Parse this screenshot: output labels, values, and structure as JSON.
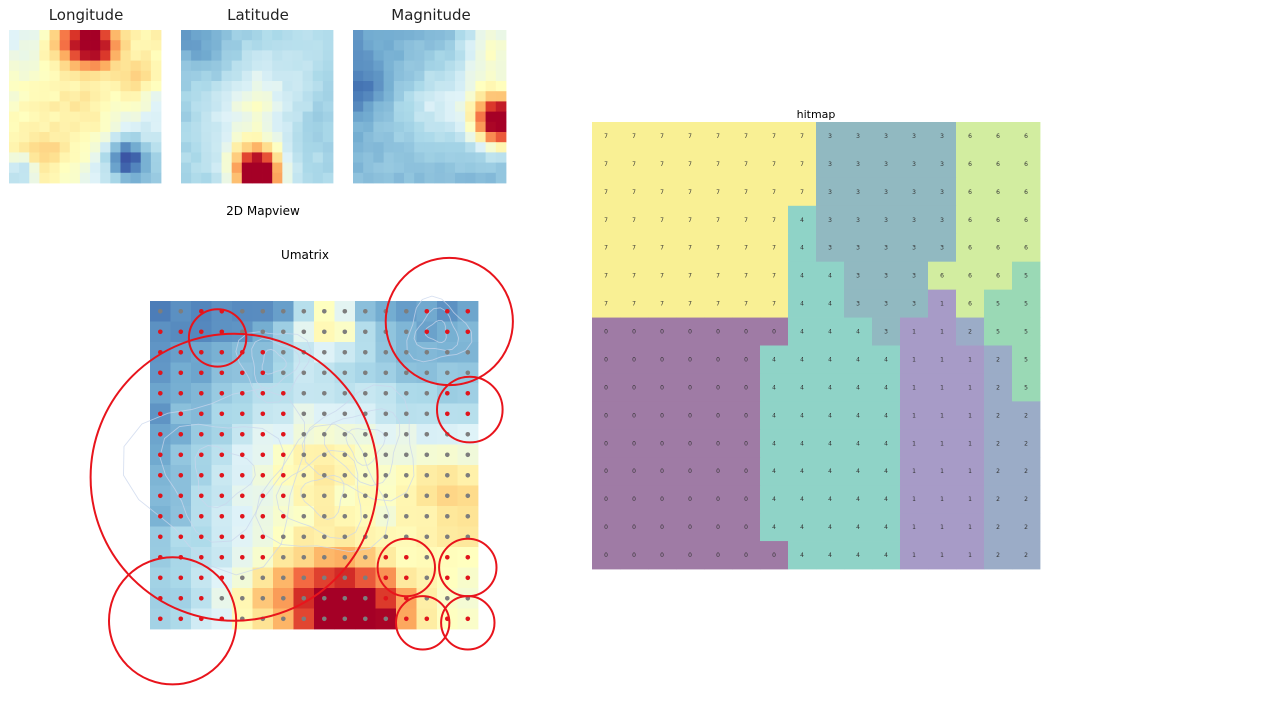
{
  "chart_data": [
    {
      "type": "heatmap",
      "title": "Longitude",
      "cmap": "RdYlBu_r",
      "rows": 15,
      "cols": 15,
      "value_range": [
        0,
        1
      ],
      "spec": {
        "base": [
          0.4,
          0.55,
          0.6,
          0.28,
          0.2
        ],
        "blobs": [
          [
            1,
            8,
            1.5,
            0.55
          ],
          [
            0.5,
            5.5,
            1.5,
            0.3
          ],
          [
            4,
            12,
            1.2,
            0.15
          ],
          [
            12,
            11,
            1.4,
            -0.35
          ],
          [
            13.5,
            0.5,
            1.2,
            -0.3
          ],
          [
            11.5,
            3,
            1.4,
            0.1
          ]
        ],
        "seed": 7,
        "noise": 0.05
      }
    },
    {
      "type": "heatmap",
      "title": "Latitude",
      "cmap": "RdYlBu_r",
      "rows": 15,
      "cols": 15,
      "value_range": [
        0,
        1
      ],
      "spec": {
        "base": [
          0.28,
          0.32,
          0.3,
          0.3,
          0.3
        ],
        "blobs": [
          [
            13.8,
            7.2,
            1.4,
            0.75
          ],
          [
            12.5,
            6.5,
            1.8,
            0.3
          ],
          [
            0,
            0,
            1.4,
            -0.1
          ],
          [
            2,
            2.5,
            2,
            -0.08
          ],
          [
            8,
            12,
            2,
            -0.05
          ]
        ],
        "seed": 11,
        "noise": 0.04
      }
    },
    {
      "type": "heatmap",
      "title": "Magnitude",
      "cmap": "RdYlBu_r",
      "rows": 15,
      "cols": 15,
      "value_range": [
        0,
        1
      ],
      "spec": {
        "base": [
          0.18,
          0.26,
          0.24,
          0.24,
          0.22
        ],
        "blobs": [
          [
            8.5,
            14,
            1.6,
            0.78
          ],
          [
            6.5,
            13,
            2.6,
            0.2
          ],
          [
            5,
            0.5,
            2,
            -0.1
          ],
          [
            1,
            13,
            2,
            0.2
          ]
        ],
        "seed": 23,
        "noise": 0.04
      }
    },
    {
      "type": "heatmap",
      "title": "Umatrix",
      "cmap": "RdYlBu_r",
      "rows": 16,
      "cols": 16,
      "value_range": [
        0,
        1
      ],
      "spec": {
        "base": [
          0.12,
          0.18,
          0.3,
          0.48,
          0.5
        ],
        "blobs": [
          [
            15,
            10,
            1.6,
            0.6
          ],
          [
            14,
            8,
            1.7,
            0.32
          ],
          [
            14.5,
            5.5,
            1.6,
            0.2
          ],
          [
            0.5,
            8.2,
            1.2,
            0.35
          ],
          [
            9,
            15,
            2,
            0.25
          ]
        ],
        "seed": 5,
        "noise": 0.06
      },
      "markers": {
        "red": [
          [
            0,
            2
          ],
          [
            0,
            3
          ],
          [
            0,
            13
          ],
          [
            0,
            14
          ],
          [
            0,
            15
          ],
          [
            1,
            0
          ],
          [
            1,
            1
          ],
          [
            1,
            2
          ],
          [
            1,
            3
          ],
          [
            1,
            13
          ],
          [
            1,
            14
          ],
          [
            1,
            15
          ],
          [
            2,
            0
          ],
          [
            2,
            1
          ],
          [
            2,
            2
          ],
          [
            2,
            3
          ],
          [
            2,
            4
          ],
          [
            2,
            5
          ],
          [
            3,
            0
          ],
          [
            3,
            1
          ],
          [
            3,
            2
          ],
          [
            3,
            3
          ],
          [
            3,
            4
          ],
          [
            3,
            5
          ],
          [
            4,
            0
          ],
          [
            4,
            1
          ],
          [
            4,
            2
          ],
          [
            4,
            3
          ],
          [
            4,
            4
          ],
          [
            4,
            5
          ],
          [
            4,
            6
          ],
          [
            4,
            14
          ],
          [
            4,
            15
          ],
          [
            5,
            0
          ],
          [
            5,
            1
          ],
          [
            5,
            2
          ],
          [
            5,
            3
          ],
          [
            5,
            4
          ],
          [
            5,
            5
          ],
          [
            5,
            6
          ],
          [
            5,
            14
          ],
          [
            5,
            15
          ],
          [
            6,
            0
          ],
          [
            6,
            1
          ],
          [
            6,
            2
          ],
          [
            6,
            3
          ],
          [
            6,
            4
          ],
          [
            6,
            5
          ],
          [
            6,
            6
          ],
          [
            7,
            0
          ],
          [
            7,
            1
          ],
          [
            7,
            2
          ],
          [
            7,
            3
          ],
          [
            7,
            4
          ],
          [
            7,
            5
          ],
          [
            7,
            6
          ],
          [
            8,
            0
          ],
          [
            8,
            1
          ],
          [
            8,
            2
          ],
          [
            8,
            3
          ],
          [
            8,
            4
          ],
          [
            8,
            5
          ],
          [
            8,
            6
          ],
          [
            9,
            0
          ],
          [
            9,
            1
          ],
          [
            9,
            2
          ],
          [
            9,
            3
          ],
          [
            9,
            4
          ],
          [
            9,
            5
          ],
          [
            9,
            6
          ],
          [
            10,
            0
          ],
          [
            10,
            1
          ],
          [
            10,
            2
          ],
          [
            10,
            3
          ],
          [
            10,
            4
          ],
          [
            10,
            5
          ],
          [
            10,
            6
          ],
          [
            11,
            0
          ],
          [
            11,
            1
          ],
          [
            11,
            2
          ],
          [
            11,
            3
          ],
          [
            11,
            4
          ],
          [
            11,
            5
          ],
          [
            12,
            0
          ],
          [
            12,
            1
          ],
          [
            12,
            2
          ],
          [
            12,
            3
          ],
          [
            12,
            4
          ],
          [
            12,
            5
          ],
          [
            12,
            11
          ],
          [
            12,
            12
          ],
          [
            12,
            14
          ],
          [
            12,
            15
          ],
          [
            13,
            0
          ],
          [
            13,
            1
          ],
          [
            13,
            2
          ],
          [
            13,
            3
          ],
          [
            13,
            11
          ],
          [
            13,
            12
          ],
          [
            13,
            14
          ],
          [
            13,
            15
          ],
          [
            14,
            0
          ],
          [
            14,
            1
          ],
          [
            14,
            2
          ],
          [
            14,
            11
          ],
          [
            14,
            12
          ],
          [
            15,
            0
          ],
          [
            15,
            1
          ],
          [
            15,
            2
          ],
          [
            15,
            3
          ],
          [
            15,
            12
          ],
          [
            15,
            13
          ],
          [
            15,
            14
          ],
          [
            15,
            15
          ]
        ]
      },
      "circles": [
        [
          1.3,
          2.8,
          1.4
        ],
        [
          0.5,
          14.1,
          3.1
        ],
        [
          4.8,
          15.1,
          1.6
        ],
        [
          8.1,
          3.6,
          7.0
        ],
        [
          12.5,
          12.0,
          1.4
        ],
        [
          12.5,
          15.0,
          1.4
        ],
        [
          15.2,
          12.8,
          1.3
        ],
        [
          15.2,
          15.0,
          1.3
        ],
        [
          15.1,
          0.6,
          3.1
        ]
      ]
    },
    {
      "type": "heatmap",
      "title": "hitmap",
      "rows": 16,
      "cols": 16,
      "grid": [
        "7777777733333666",
        "7777777733333666",
        "7777777733333666",
        "7777777433333666",
        "7777777433333666",
        "7777777443336665",
        "7777777443331655",
        "0000000444311255",
        "0000004444411125",
        "0000004444411125",
        "0000004444411122",
        "0000004444411122",
        "0000004444411122",
        "0000004444411122",
        "0000004444411122",
        "0000000444411122"
      ],
      "colors": {
        "0": "#9f7ba5",
        "1": "#a79bc7",
        "2": "#9bacc7",
        "3": "#91b9c1",
        "4": "#8fd3c7",
        "5": "#9ad9b5",
        "6": "#d2eda0",
        "7": "#f9f094"
      }
    }
  ],
  "labels": {
    "mapview": "2D Mapview"
  }
}
